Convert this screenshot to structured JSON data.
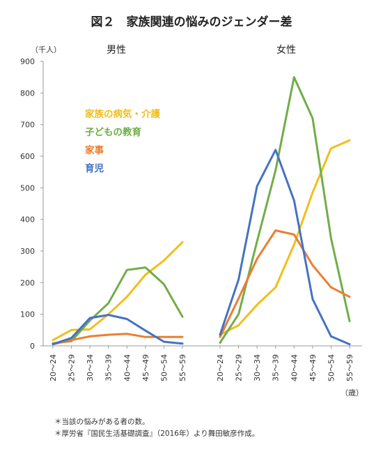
{
  "title": "図２　家族関連の悩みのジェンダー差",
  "y_unit": "（千人）",
  "x_unit": "（歳）",
  "notes": [
    "＊当該の悩みがある者の数。",
    "＊厚労省『国民生活基礎調査』（2016年）より舞田敏彦作成。"
  ],
  "colors": {
    "family_care": "#F2BE1A",
    "education": "#70AD47",
    "housework": "#ED7D31",
    "childcare": "#4472C4",
    "axis": "#999999"
  },
  "chart_data": [
    {
      "type": "line",
      "title": "男性",
      "categories": [
        "20～24",
        "25～29",
        "30～34",
        "35～39",
        "40～44",
        "45～49",
        "50～54",
        "55～59"
      ],
      "ylim": [
        0,
        900
      ],
      "yticks": [
        0,
        100,
        200,
        300,
        400,
        500,
        600,
        700,
        800,
        900
      ],
      "grid": false,
      "legend_position": "top-left",
      "series": [
        {
          "name": "家族の病気・介護",
          "color_key": "family_care",
          "values": [
            18,
            50,
            52,
            100,
            155,
            225,
            270,
            328
          ]
        },
        {
          "name": "子どもの教育",
          "color_key": "education",
          "values": [
            8,
            15,
            80,
            135,
            240,
            248,
            195,
            92
          ]
        },
        {
          "name": "家事",
          "color_key": "housework",
          "values": [
            5,
            18,
            30,
            35,
            38,
            28,
            28,
            28
          ]
        },
        {
          "name": "育児",
          "color_key": "childcare",
          "values": [
            5,
            25,
            88,
            98,
            85,
            48,
            13,
            7
          ]
        }
      ]
    },
    {
      "type": "line",
      "title": "女性",
      "categories": [
        "20～24",
        "25～29",
        "30～34",
        "35～39",
        "40～44",
        "45～49",
        "50～54",
        "55～59"
      ],
      "ylim": [
        0,
        900
      ],
      "grid": false,
      "series": [
        {
          "name": "家族の病気・介護",
          "color_key": "family_care",
          "values": [
            35,
            65,
            130,
            185,
            320,
            485,
            625,
            650
          ]
        },
        {
          "name": "子どもの教育",
          "color_key": "education",
          "values": [
            10,
            100,
            330,
            555,
            850,
            720,
            340,
            78
          ]
        },
        {
          "name": "家事",
          "color_key": "housework",
          "values": [
            28,
            150,
            275,
            365,
            352,
            255,
            185,
            155
          ]
        },
        {
          "name": "育児",
          "color_key": "childcare",
          "values": [
            35,
            210,
            505,
            620,
            460,
            148,
            30,
            5
          ]
        }
      ]
    }
  ]
}
